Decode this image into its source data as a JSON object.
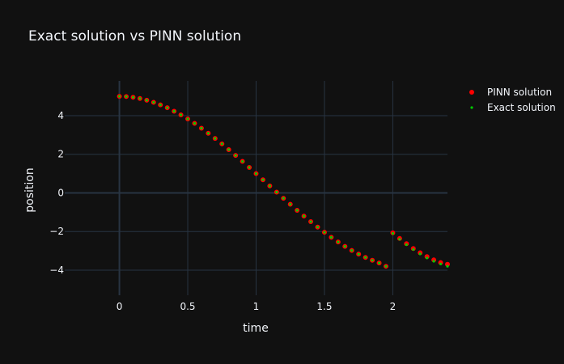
{
  "chart_data": {
    "type": "scatter",
    "title": "Exact solution vs PINN solution",
    "xlabel": "time",
    "ylabel": "position",
    "xlim": [
      -0.4,
      2.4
    ],
    "ylim": [
      -5.3,
      5.8
    ],
    "xticks": [
      0,
      0.5,
      1,
      1.5,
      2
    ],
    "xtick_labels": [
      "0",
      "0.5",
      "1",
      "1.5",
      "2"
    ],
    "yticks": [
      4,
      2,
      0,
      -2,
      -4
    ],
    "ytick_labels": [
      "4",
      "2",
      "0",
      "−2",
      "−4"
    ],
    "grid": true,
    "legend_position": "top-right",
    "series": [
      {
        "name": "PINN solution",
        "color": "#ff0000",
        "marker_size": 3,
        "x": [
          0,
          0.05,
          0.1,
          0.15,
          0.2,
          0.25,
          0.3,
          0.35,
          0.4,
          0.45,
          0.5,
          0.55,
          0.6,
          0.65,
          0.7,
          0.75,
          0.8,
          0.85,
          0.9,
          0.95,
          1,
          1.05,
          1.1,
          1.15,
          1.2,
          1.25,
          1.3,
          1.35,
          1.4,
          1.45,
          1.5,
          1.55,
          1.6,
          1.65,
          1.7,
          1.75,
          1.8,
          1.85,
          1.9,
          1.95,
          2,
          2.05,
          2.1,
          2.15,
          2.2,
          2.25,
          2.3,
          2.35,
          2.4
        ],
        "y": [
          5.0,
          4.99,
          4.95,
          4.89,
          4.8,
          4.69,
          4.56,
          4.41,
          4.23,
          4.04,
          3.83,
          3.6,
          3.35,
          3.09,
          2.82,
          2.54,
          2.24,
          1.94,
          1.63,
          1.32,
          1.0,
          0.68,
          0.36,
          0.04,
          -0.28,
          -0.59,
          -0.9,
          -1.2,
          -1.49,
          -1.77,
          -2.04,
          -2.3,
          -2.54,
          -2.77,
          -2.98,
          -3.17,
          -3.34,
          -3.49,
          -3.63,
          -3.8,
          -2.07,
          -2.36,
          -2.63,
          -2.88,
          -3.1,
          -3.3,
          -3.47,
          -3.61,
          -3.7
        ]
      },
      {
        "name": "Exact solution",
        "color": "#00cc00",
        "marker_size": 1.6,
        "x": [
          0,
          0.05,
          0.1,
          0.15,
          0.2,
          0.25,
          0.3,
          0.35,
          0.4,
          0.45,
          0.5,
          0.55,
          0.6,
          0.65,
          0.7,
          0.75,
          0.8,
          0.85,
          0.9,
          0.95,
          1,
          1.05,
          1.1,
          1.15,
          1.2,
          1.25,
          1.3,
          1.35,
          1.4,
          1.45,
          1.5,
          1.55,
          1.6,
          1.65,
          1.7,
          1.75,
          1.8,
          1.85,
          1.9,
          1.95,
          2,
          2.05,
          2.1,
          2.15,
          2.2,
          2.25,
          2.3,
          2.35,
          2.4
        ],
        "y": [
          5.0,
          4.99,
          4.95,
          4.89,
          4.8,
          4.69,
          4.56,
          4.41,
          4.23,
          4.04,
          3.83,
          3.6,
          3.35,
          3.09,
          2.82,
          2.54,
          2.24,
          1.94,
          1.63,
          1.32,
          1.0,
          0.68,
          0.36,
          0.04,
          -0.28,
          -0.59,
          -0.9,
          -1.2,
          -1.49,
          -1.77,
          -2.04,
          -2.3,
          -2.54,
          -2.77,
          -2.98,
          -3.17,
          -3.34,
          -3.49,
          -3.63,
          -3.8,
          -2.1,
          -2.4,
          -2.68,
          -2.93,
          -3.16,
          -3.37,
          -3.54,
          -3.68,
          -3.8
        ]
      }
    ]
  }
}
